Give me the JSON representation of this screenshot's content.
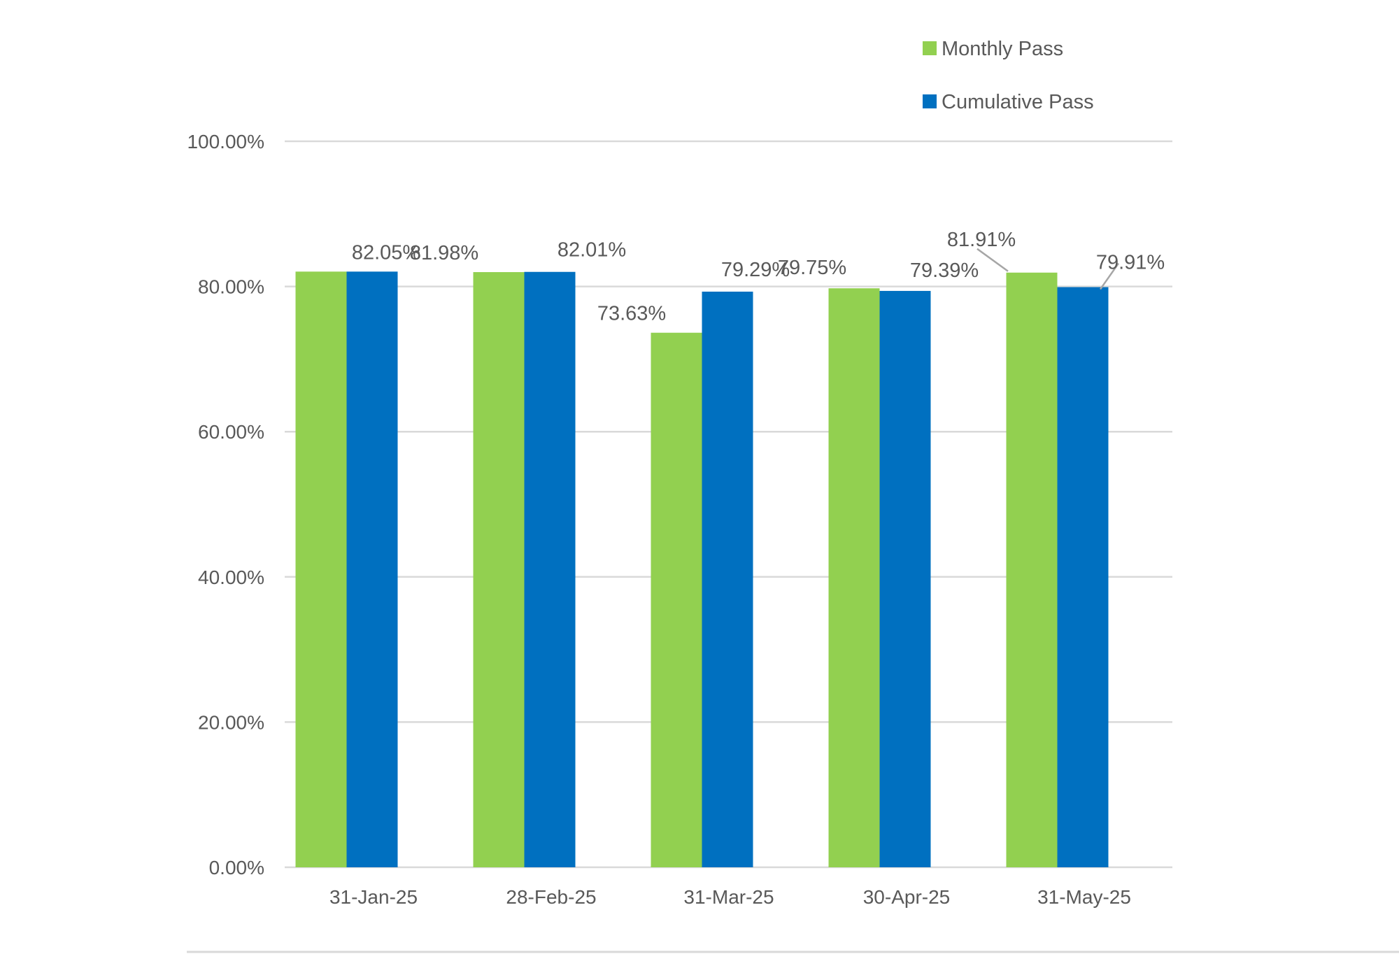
{
  "chart_data": {
    "type": "bar",
    "categories": [
      "31-Jan-25",
      "28-Feb-25",
      "31-Mar-25",
      "30-Apr-25",
      "31-May-25"
    ],
    "series": [
      {
        "name": "Monthly Pass",
        "color": "#92D050",
        "values": [
          82.05,
          81.98,
          73.63,
          79.75,
          81.91
        ],
        "labels": [
          "",
          "81.98%",
          "73.63%",
          "79.75%",
          "81.91%"
        ]
      },
      {
        "name": "Cumulative Pass",
        "color": "#0070C0",
        "values": [
          82.05,
          82.01,
          79.29,
          79.39,
          79.91
        ],
        "labels": [
          "82.05%",
          "82.01%",
          "79.29%",
          "79.39%",
          "79.91%"
        ]
      }
    ],
    "y_ticks": [
      "0.00%",
      "20.00%",
      "40.00%",
      "60.00%",
      "80.00%",
      "100.00%"
    ],
    "ylim": [
      0,
      100
    ],
    "grid": true,
    "gridline_color": "#D9D9D9",
    "legend_position": "top-right"
  }
}
